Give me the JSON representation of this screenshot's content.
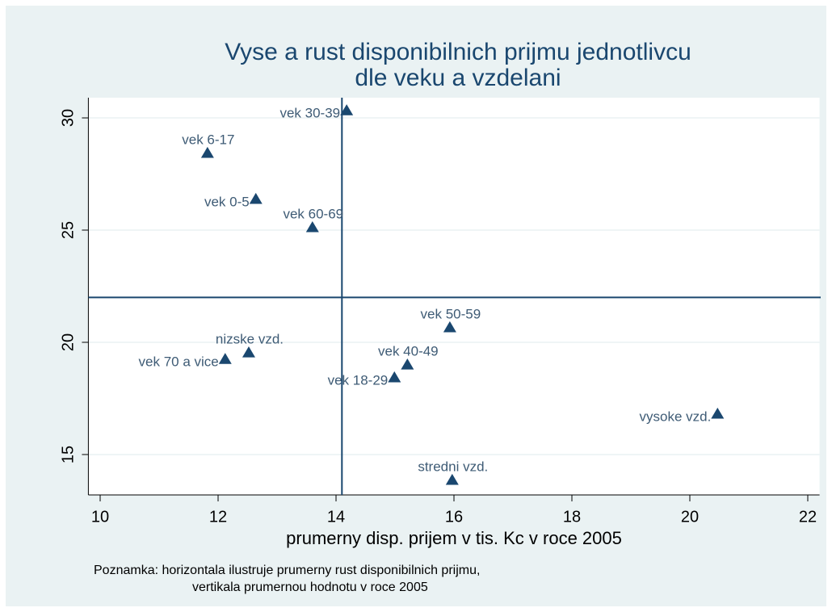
{
  "chart_data": {
    "type": "scatter",
    "title": [
      "Vyse a rust disponibilnich prijmu jednotlivcu",
      "dle veku a vzdelani"
    ],
    "xlabel": "prumerny disp. prijem v tis. Kc v roce 2005",
    "note": [
      "Poznamka: horizontala ilustruje prumerny rust disponibilnich prijmu,",
      "vertikala prumernou hodnotu v roce 2005"
    ],
    "series": [
      {
        "marker": "triangle",
        "color": "#1a476f",
        "labels": [
          "vek 30-39",
          "vek 6-17",
          "vek 0-5",
          "vek 60-69",
          "vek 50-59",
          "nizske vzd.",
          "vek 70 a vice",
          "vek 40-49",
          "vek 18-29",
          "vysoke vzd.",
          "stredni vzd."
        ],
        "x": [
          14.18,
          11.82,
          12.64,
          13.6,
          15.93,
          12.52,
          12.12,
          15.21,
          14.99,
          20.47,
          15.97
        ],
        "values": [
          30.32,
          28.42,
          26.37,
          25.11,
          20.65,
          19.53,
          19.24,
          18.99,
          18.42,
          16.8,
          13.85
        ]
      }
    ],
    "xline": 14.1,
    "yline": 22.0,
    "xlim": [
      9.8,
      22.2
    ],
    "ylim": [
      13.2,
      30.9
    ],
    "xticks": [
      10,
      12,
      14,
      16,
      18,
      20,
      22
    ],
    "yticks": [
      15,
      20,
      25,
      30
    ],
    "grid": true
  }
}
